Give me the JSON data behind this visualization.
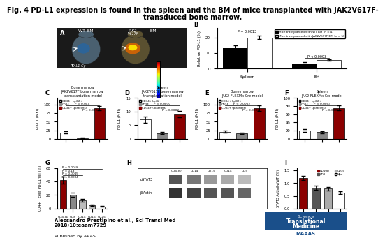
{
  "title_line1": "Fig. 4 PD-L1 expression is found in the spleen and the BM of mice transplanted with JAK2V617F-",
  "title_line2": "transduced bone marrow.",
  "title_fontsize": 7,
  "panel_B": {
    "categories": [
      "Spleen",
      "BM"
    ],
    "wt_values": [
      13,
      3.5
    ],
    "jak2_values": [
      20,
      5.5
    ],
    "wt_errors": [
      2.0,
      0.6
    ],
    "jak2_errors": [
      1.2,
      0.5
    ],
    "ylabel": "Relative PD-L1 (%)",
    "legend_wt": "Mice transplanted with WT BM (n = 4)",
    "legend_jak2": "Mice transplanted with JAK2V617F BM (n = 5)",
    "p_spleen": "P = 0.0013",
    "p_bm": "P < 0.0003",
    "ylim": [
      0,
      26
    ]
  },
  "panel_C": {
    "title1": "Bone marrow",
    "title2": "JAK2V617F bone marrow",
    "title3": "transplantation model",
    "leg1": "CD34+ Ly-B2+",
    "leg2": "CD34-",
    "leg3": "CD34+ (platelets)",
    "values": [
      18,
      2,
      90
    ],
    "errors": [
      3,
      0.5,
      7
    ],
    "colors": [
      "white",
      "#888888",
      "#8B0000"
    ],
    "ylabel": "PD-L1 (MFI)",
    "ylim": [
      0,
      120
    ],
    "p1": "P = 0.044",
    "p2": "P < 0.0002"
  },
  "panel_D": {
    "title1": "Spleen",
    "title2": "JAK2V617F bone marrow",
    "title3": "transplantation model",
    "leg1": "CD34+ Ly-B2+",
    "leg2": "CD34-",
    "leg3": "CD34+ (platelets)",
    "values": [
      7,
      2,
      9
    ],
    "errors": [
      1.2,
      0.4,
      1.2
    ],
    "colors": [
      "white",
      "#888888",
      "#8B0000"
    ],
    "ylabel": "PD-L1 (MFI)",
    "ylim": [
      0,
      15
    ],
    "p1": "P < 0.0010",
    "p2": "P < 0.0002"
  },
  "panel_E": {
    "title1": "Bone marrow",
    "title2": "JAK2-FLEXMx-Cre model",
    "title3": "",
    "leg1": "CD34+ Ly-B2+",
    "leg2": "CD34-",
    "leg3": "CD34+ (platelets)",
    "values": [
      20,
      16,
      90
    ],
    "errors": [
      3,
      2.5,
      8
    ],
    "colors": [
      "white",
      "#888888",
      "#8B0000"
    ],
    "ylabel": "PD-L1 (MFI)",
    "ylim": [
      0,
      120
    ],
    "p1": "P < 0.0002",
    "p2": "P < 0.0002"
  },
  "panel_F": {
    "title1": "Spleen",
    "title2": "JAK2-FLEXMx-Cre model",
    "title3": "",
    "leg1": "CD34+ Ly-B2+",
    "leg2": "CD34-",
    "leg3": "CD34+ (platelets)",
    "values": [
      20,
      16,
      75
    ],
    "errors": [
      3,
      2.5,
      6
    ],
    "colors": [
      "white",
      "#888888",
      "#8B0000"
    ],
    "ylabel": "PD-L1 (MFI)",
    "ylim": [
      0,
      100
    ],
    "p1": "P < 0.0044",
    "p2": "P < 0.0005"
  },
  "panel_G": {
    "categories": [
      "CD4(N)",
      "CD8",
      "CD14",
      "CD15",
      "CD25"
    ],
    "values": [
      42,
      20,
      12,
      5,
      3
    ],
    "errors": [
      5,
      3,
      2,
      1,
      0.5
    ],
    "ylabel": "CD4+ T cells PD-L1/WT (%)",
    "ylim": [
      0,
      60
    ],
    "p1": "P = 0.0018",
    "p2": "P = 0.13",
    "p3": "P = 0.0045",
    "p4": "P < 0.0004"
  },
  "panel_H": {
    "label_top": "pSTAT3",
    "label_bot": "β-Actin",
    "lane_labels": "CD4(N)  CD14  CD15  CD14 CD5",
    "band_colors_top": [
      "#555",
      "#777",
      "#999",
      "#aaa",
      "#bbb"
    ],
    "band_colors_bot": [
      "#333",
      "#444",
      "#555",
      "#555",
      "#666"
    ]
  },
  "panel_I": {
    "categories": [
      "CD4(N)",
      "CD8",
      "CD15",
      "Mpe"
    ],
    "values": [
      1.2,
      0.82,
      0.78,
      0.62
    ],
    "errors": [
      0.09,
      0.07,
      0.06,
      0.05
    ],
    "colors_leg": [
      "#8B0000",
      "#555555",
      "#aaaaaa",
      "white"
    ],
    "leg_labels": [
      "CD4(N)",
      "CD8",
      "CD15",
      "Mpe"
    ],
    "ylabel": "STAT3 Activity/WT (%)",
    "ylim": [
      0,
      1.6
    ]
  },
  "footer_text": "Alessandro Prestipino et al., Sci Transl Med\n2018;10:eaam7729",
  "published_text": "Published by AAAS",
  "logo_bg": "#1a4f8a",
  "logo_line1": "Science",
  "logo_line2": "Translational",
  "logo_line3": "Medicine",
  "logo_line4": "MAAAS"
}
